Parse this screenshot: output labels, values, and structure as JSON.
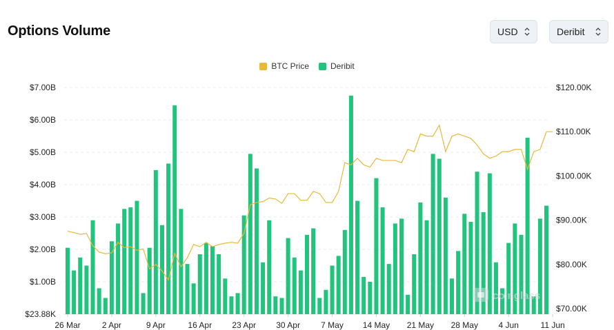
{
  "header": {
    "title": "Options Volume"
  },
  "controls": {
    "currency": {
      "value": "USD"
    },
    "exchange": {
      "value": "Deribit"
    }
  },
  "legend": {
    "items": [
      {
        "label": "BTC Price",
        "color": "#e8b83a"
      },
      {
        "label": "Deribit",
        "color": "#22c47d"
      }
    ]
  },
  "watermark": "coinglass",
  "chart_data": {
    "type": "bar",
    "title": "",
    "grid": "horizontal dashed",
    "legend_position": "top-center",
    "x_ticks": [
      "26 Mar",
      "2 Apr",
      "9 Apr",
      "16 Apr",
      "23 Apr",
      "30 Apr",
      "7 May",
      "14 May",
      "21 May",
      "28 May",
      "4 Jun",
      "11 Jun"
    ],
    "y_left": {
      "ticks": [
        "$23.88K",
        "$1.00B",
        "$2.00B",
        "$3.00B",
        "$4.00B",
        "$5.00B",
        "$6.00B",
        "$7.00B"
      ],
      "tick_values": [
        0,
        1,
        2,
        3,
        4,
        5,
        6,
        7
      ],
      "unit": "billion USD",
      "range": [
        0,
        7
      ]
    },
    "y_right": {
      "ticks": [
        "$70.00K",
        "$80.00K",
        "$90.00K",
        "$100.00K",
        "$110.00K",
        "$120.00K"
      ],
      "tick_values": [
        70,
        80,
        90,
        100,
        110,
        120
      ],
      "unit": "thousand USD",
      "range": [
        70,
        120
      ]
    },
    "series": [
      {
        "name": "Deribit",
        "type": "bar",
        "axis": "left",
        "color": "#22c47d",
        "values": [
          2.05,
          1.35,
          1.75,
          1.5,
          2.9,
          0.8,
          0.5,
          2.25,
          2.8,
          3.25,
          3.3,
          3.5,
          0.65,
          2.05,
          4.45,
          2.75,
          4.65,
          6.45,
          3.25,
          1.55,
          0.95,
          1.85,
          2.2,
          2.1,
          1.85,
          1.1,
          0.55,
          0.65,
          3.05,
          4.95,
          4.5,
          1.6,
          2.9,
          0.55,
          0.5,
          2.35,
          1.75,
          1.35,
          2.45,
          2.65,
          0.5,
          0.75,
          1.5,
          1.8,
          2.6,
          6.75,
          3.5,
          1.15,
          1.0,
          4.2,
          3.3,
          1.55,
          2.8,
          2.95,
          0.6,
          1.85,
          3.45,
          2.9,
          4.95,
          4.8,
          3.6,
          1.1,
          1.95,
          3.1,
          2.85,
          4.4,
          3.15,
          4.35,
          1.6,
          0.8,
          2.2,
          2.8,
          2.45,
          5.45,
          0.55,
          2.95,
          3.35
        ]
      },
      {
        "name": "BTC Price",
        "type": "line",
        "axis": "right",
        "color": "#e8b83a",
        "values": [
          87.5,
          87.2,
          86.8,
          87.0,
          84.2,
          82.8,
          82.4,
          82.6,
          85.0,
          83.8,
          84.0,
          83.2,
          83.5,
          79.0,
          80.0,
          78.5,
          76.5,
          82.5,
          79.5,
          81.5,
          84.5,
          84.0,
          85.0,
          84.0,
          84.5,
          84.8,
          85.0,
          84.8,
          87.0,
          93.5,
          94.0,
          94.2,
          95.0,
          94.8,
          93.8,
          96.0,
          96.0,
          94.5,
          94.5,
          96.5,
          96.0,
          94.0,
          94.0,
          96.5,
          103.0,
          102.5,
          104.0,
          102.5,
          102.0,
          104.0,
          103.5,
          103.5,
          103.5,
          103.0,
          106.0,
          105.5,
          109.5,
          109.0,
          109.0,
          111.5,
          105.5,
          109.0,
          109.5,
          109.0,
          108.5,
          107.0,
          105.0,
          104.0,
          104.5,
          105.5,
          105.5,
          106.0,
          106.0,
          101.5,
          105.5,
          106.0,
          110.0,
          110.0
        ]
      }
    ]
  }
}
